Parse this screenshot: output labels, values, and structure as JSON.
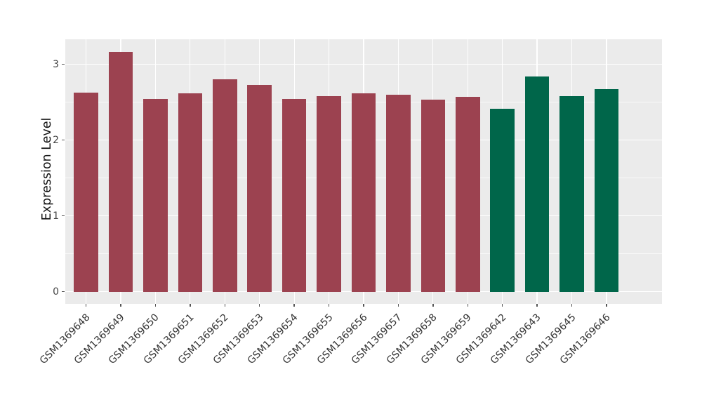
{
  "figure": {
    "background": "#FFFFFF",
    "panel_background": "#EBEBEB"
  },
  "chart_data": {
    "type": "bar",
    "title": "",
    "xlabel": "",
    "ylabel": "Expression Level",
    "categories": [
      "GSM1369648",
      "GSM1369649",
      "GSM1369650",
      "GSM1369651",
      "GSM1369652",
      "GSM1369653",
      "GSM1369654",
      "GSM1369655",
      "GSM1369656",
      "GSM1369657",
      "GSM1369658",
      "GSM1369659",
      "GSM1369642",
      "GSM1369643",
      "GSM1369645",
      "GSM1369646"
    ],
    "values": [
      2.63,
      3.16,
      2.54,
      2.62,
      2.8,
      2.73,
      2.54,
      2.58,
      2.62,
      2.6,
      2.53,
      2.57,
      2.41,
      2.84,
      2.58,
      2.67
    ],
    "groups": [
      "group1",
      "group1",
      "group1",
      "group1",
      "group1",
      "group1",
      "group1",
      "group1",
      "group1",
      "group1",
      "group1",
      "group1",
      "group2",
      "group2",
      "group2",
      "group2"
    ],
    "group_colors": {
      "group1": "#9C4250",
      "group2": "#00664A"
    },
    "ylim": [
      -0.16,
      3.33
    ],
    "yticks": [
      0,
      1,
      2,
      3
    ],
    "yticklabels": [
      "0",
      "1",
      "2",
      "3"
    ],
    "yticks_minor": [
      0.5,
      1.5,
      2.5
    ],
    "x_tick_rotation": 45,
    "bar_width_fraction": 0.7,
    "grid": true,
    "grid_color": "#FFFFFF",
    "tick_color": "#555555",
    "legend": false
  }
}
